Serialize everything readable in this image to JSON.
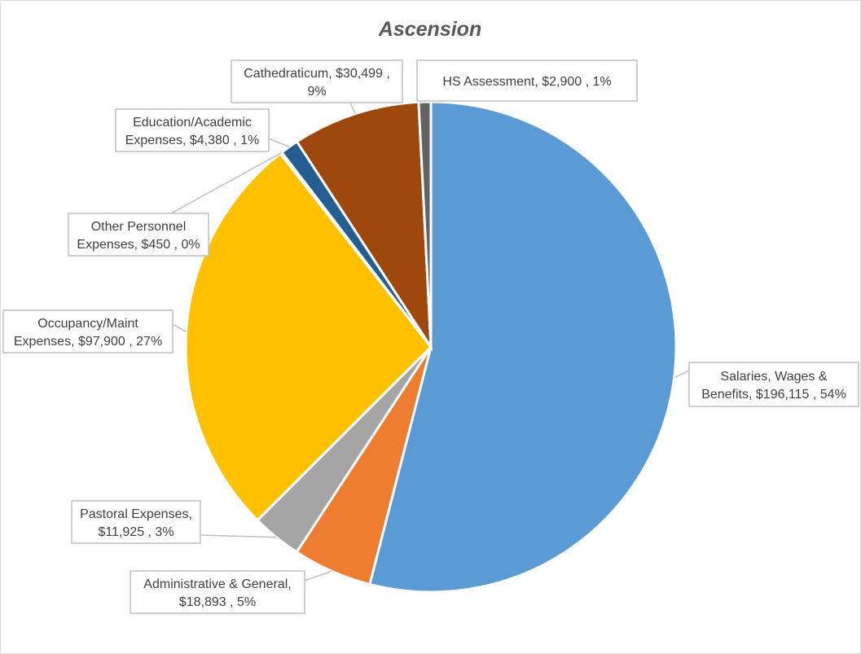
{
  "chart_data": {
    "type": "pie",
    "title": "Ascension",
    "legend": "none",
    "slices": [
      {
        "name": "Salaries, Wages & Benefits",
        "value": 196115,
        "percent": "54%",
        "value_text": "$196,115",
        "color": "#5B9BD5",
        "label_lines": [
          "Salaries, Wages &",
          "Benefits,  $196,115 , 54%"
        ]
      },
      {
        "name": "Administrative & General",
        "value": 18893,
        "percent": "5%",
        "value_text": "$18,893",
        "color": "#ED7D31",
        "label_lines": [
          "Administrative & General,",
          "$18,893 , 5%"
        ]
      },
      {
        "name": "Pastoral Expenses",
        "value": 11925,
        "percent": "3%",
        "value_text": "$11,925",
        "color": "#A5A5A5",
        "label_lines": [
          "Pastoral Expenses,",
          "$11,925 , 3%"
        ]
      },
      {
        "name": "Occupancy/Maint Expenses",
        "value": 97900,
        "percent": "27%",
        "value_text": "$97,900",
        "color": "#FFC000",
        "label_lines": [
          "Occupancy/Maint",
          "Expenses,  $97,900 , 27%"
        ]
      },
      {
        "name": "Other Personnel Expenses",
        "value": 450,
        "percent": "0%",
        "value_text": "$450",
        "color": "#4472C4",
        "label_lines": [
          "Other Personnel",
          "Expenses,  $450 , 0%"
        ]
      },
      {
        "name": "Education/Academic Expenses",
        "value": 4380,
        "percent": "1%",
        "value_text": "$4,380",
        "color": "#255E91",
        "label_lines": [
          "Education/Academic",
          "Expenses,  $4,380 , 1%"
        ]
      },
      {
        "name": "Cathedraticum",
        "value": 30499,
        "percent": "9%",
        "value_text": "$30,499",
        "color": "#9E480E",
        "label_lines": [
          "Cathedraticum,  $30,499 ,",
          "9%"
        ]
      },
      {
        "name": "HS Assessment",
        "value": 2900,
        "percent": "1%",
        "value_text": "$2,900",
        "color": "#636363",
        "label_lines": [
          "HS Assessment,  $2,900 , 1%"
        ]
      }
    ]
  }
}
